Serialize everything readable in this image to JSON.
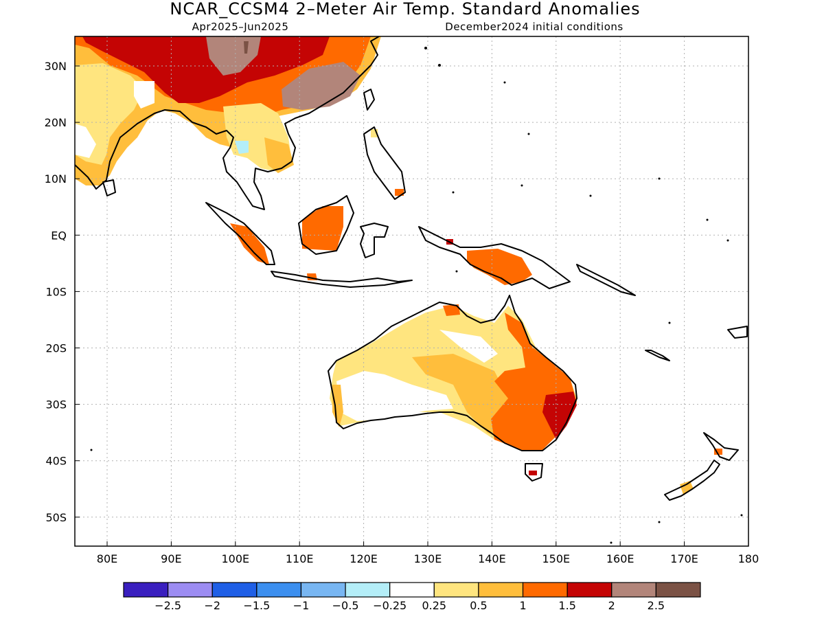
{
  "title": "NCAR_CCSM4 2–Meter Air Temp. Standard Anomalies",
  "valid_period": "Apr2025–Jun2025",
  "init_conditions": "December2024 initial conditions",
  "lon_labels": [
    "80E",
    "90E",
    "100E",
    "110E",
    "120E",
    "130E",
    "140E",
    "150E",
    "160E",
    "170E",
    "180"
  ],
  "lat_labels": [
    "30N",
    "20N",
    "10N",
    "EQ",
    "10S",
    "20S",
    "30S",
    "40S",
    "50S"
  ],
  "colorbar": {
    "colors": [
      "#3a1fbf",
      "#9c8cf2",
      "#1f5fe6",
      "#3c8fef",
      "#78b6f2",
      "#b4eef8",
      "#ffffff",
      "#ffe57f",
      "#ffbe3c",
      "#ff6a00",
      "#c40404",
      "#b2857a",
      "#7b5245"
    ],
    "labels": [
      "−2.5",
      "−2",
      "−1.5",
      "−1",
      "−0.5",
      "−0.25",
      "0.25",
      "0.5",
      "1",
      "1.5",
      "2",
      "2.5"
    ]
  }
}
